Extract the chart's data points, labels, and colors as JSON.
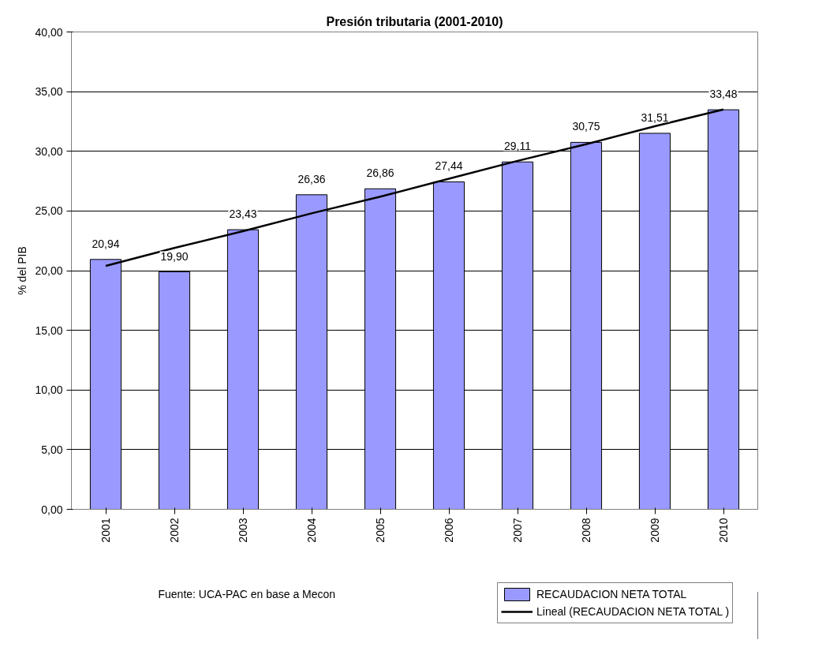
{
  "chart_data": {
    "type": "bar",
    "title": "Presión tributaria (2001-2010)",
    "ylabel": "% del PIB",
    "categories": [
      "2001",
      "2002",
      "2003",
      "2004",
      "2005",
      "2006",
      "2007",
      "2008",
      "2009",
      "2010"
    ],
    "series": [
      {
        "name": "RECAUDACION NETA TOTAL",
        "color": "#9999ff",
        "values": [
          20.94,
          19.9,
          23.43,
          26.36,
          26.86,
          27.44,
          29.11,
          30.75,
          31.51,
          33.48
        ],
        "value_labels": [
          "20,94",
          "19,90",
          "23,43",
          "26,36",
          "26,86",
          "27,44",
          "29,11",
          "30,75",
          "31,51",
          "33,48"
        ]
      },
      {
        "name": "Lineal (RECAUDACION NETA TOTAL )",
        "type": "line",
        "color": "#000000",
        "values": [
          20.4,
          21.9,
          23.3,
          24.8,
          26.2,
          27.7,
          29.2,
          30.6,
          32.1,
          33.5
        ]
      }
    ],
    "ylim": [
      0,
      40
    ],
    "yticks": [
      {
        "value": 0,
        "label": "0,00"
      },
      {
        "value": 5,
        "label": "5,00"
      },
      {
        "value": 10,
        "label": "10,00"
      },
      {
        "value": 15,
        "label": "15,00"
      },
      {
        "value": 20,
        "label": "20,00"
      },
      {
        "value": 25,
        "label": "25,00"
      },
      {
        "value": 30,
        "label": "30,00"
      },
      {
        "value": 35,
        "label": "35,00"
      },
      {
        "value": 40,
        "label": "40,00"
      }
    ],
    "grid": "y",
    "legend": "bottom right",
    "annotations": [
      "Fuente: UCA-PAC en base a Mecon"
    ]
  }
}
